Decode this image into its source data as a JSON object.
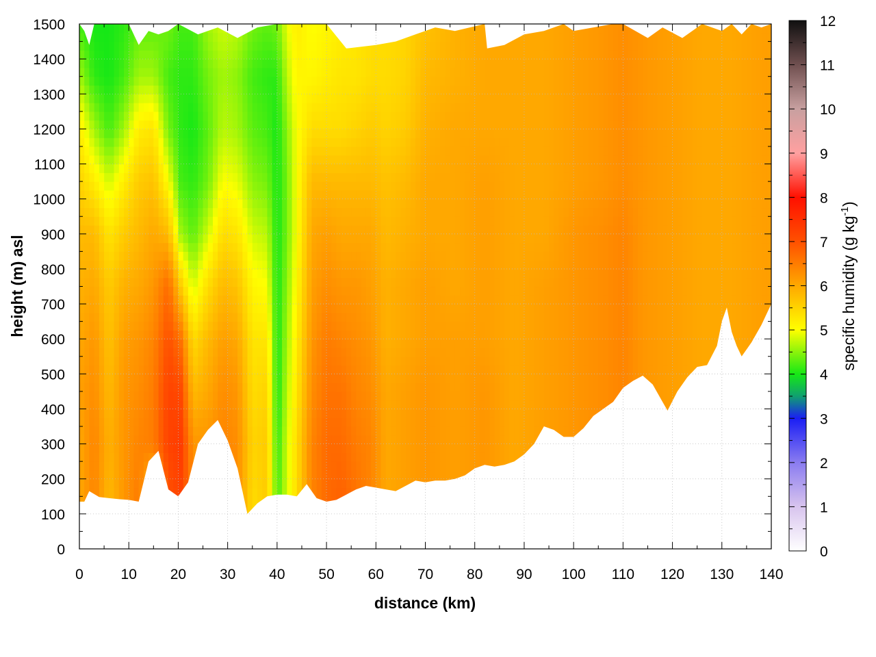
{
  "chart_data": {
    "type": "heatmap",
    "xlabel": "distance (km)",
    "ylabel": "height (m) asl",
    "colorbar_label": "specific humidity (g kg",
    "colorbar_label_sup": "-1",
    "colorbar_label_end": ")",
    "xlim": [
      0,
      140
    ],
    "ylim": [
      0,
      1500
    ],
    "clim": [
      0,
      12
    ],
    "x_ticks": [
      "0",
      "10",
      "20",
      "30",
      "40",
      "50",
      "60",
      "70",
      "80",
      "90",
      "100",
      "110",
      "120",
      "130",
      "140"
    ],
    "y_ticks": [
      "0",
      "100",
      "200",
      "300",
      "400",
      "500",
      "600",
      "700",
      "800",
      "900",
      "1000",
      "1100",
      "1200",
      "1300",
      "1400",
      "1500"
    ],
    "c_ticks": [
      "0",
      "1",
      "2",
      "3",
      "4",
      "5",
      "6",
      "7",
      "8",
      "9",
      "10",
      "11",
      "12"
    ],
    "grid": true,
    "colormap": [
      {
        "v": 0,
        "color": "#ffffff"
      },
      {
        "v": 1,
        "color": "#d8c4ee"
      },
      {
        "v": 2,
        "color": "#8a7cf0"
      },
      {
        "v": 3,
        "color": "#1a1ef4"
      },
      {
        "v": 3.5,
        "color": "#10a070"
      },
      {
        "v": 4,
        "color": "#16e816"
      },
      {
        "v": 5,
        "color": "#ffff00"
      },
      {
        "v": 6,
        "color": "#ffa800"
      },
      {
        "v": 7,
        "color": "#ff5000"
      },
      {
        "v": 8,
        "color": "#ff1000"
      },
      {
        "v": 9,
        "color": "#ffa0a0"
      },
      {
        "v": 10,
        "color": "#c8a0a0"
      },
      {
        "v": 11,
        "color": "#705050"
      },
      {
        "v": 12,
        "color": "#101010"
      }
    ],
    "terrain_bottom": [
      [
        0,
        135
      ],
      [
        1,
        135
      ],
      [
        2,
        165
      ],
      [
        4,
        148
      ],
      [
        6,
        145
      ],
      [
        8,
        142
      ],
      [
        10,
        140
      ],
      [
        12,
        135
      ],
      [
        14,
        250
      ],
      [
        16,
        280
      ],
      [
        18,
        170
      ],
      [
        20,
        150
      ],
      [
        22,
        190
      ],
      [
        24,
        300
      ],
      [
        26,
        340
      ],
      [
        28,
        368
      ],
      [
        30,
        310
      ],
      [
        32,
        230
      ],
      [
        34,
        100
      ],
      [
        36,
        130
      ],
      [
        38,
        150
      ],
      [
        40,
        155
      ],
      [
        42,
        155
      ],
      [
        44,
        150
      ],
      [
        46,
        185
      ],
      [
        48,
        145
      ],
      [
        50,
        135
      ],
      [
        52,
        140
      ],
      [
        54,
        155
      ],
      [
        56,
        170
      ],
      [
        58,
        180
      ],
      [
        60,
        175
      ],
      [
        62,
        170
      ],
      [
        64,
        165
      ],
      [
        66,
        180
      ],
      [
        68,
        195
      ],
      [
        70,
        190
      ],
      [
        72,
        195
      ],
      [
        74,
        195
      ],
      [
        76,
        200
      ],
      [
        78,
        210
      ],
      [
        80,
        230
      ],
      [
        82,
        240
      ],
      [
        84,
        235
      ],
      [
        86,
        240
      ],
      [
        88,
        250
      ],
      [
        90,
        270
      ],
      [
        92,
        300
      ],
      [
        94,
        350
      ],
      [
        96,
        340
      ],
      [
        98,
        320
      ],
      [
        100,
        320
      ],
      [
        102,
        345
      ],
      [
        104,
        380
      ],
      [
        106,
        400
      ],
      [
        108,
        420
      ],
      [
        110,
        460
      ],
      [
        112,
        480
      ],
      [
        114,
        495
      ],
      [
        116,
        470
      ],
      [
        118,
        420
      ],
      [
        119,
        395
      ],
      [
        121,
        450
      ],
      [
        123,
        490
      ],
      [
        125,
        520
      ],
      [
        127,
        525
      ],
      [
        129,
        580
      ],
      [
        130,
        650
      ],
      [
        131,
        690
      ],
      [
        132,
        620
      ],
      [
        133,
        580
      ],
      [
        134,
        550
      ],
      [
        136,
        590
      ],
      [
        138,
        640
      ],
      [
        140,
        700
      ]
    ],
    "top_boundary": [
      [
        0,
        1500
      ],
      [
        1,
        1480
      ],
      [
        2,
        1440
      ],
      [
        3,
        1500
      ],
      [
        10,
        1500
      ],
      [
        12,
        1440
      ],
      [
        14,
        1480
      ],
      [
        16,
        1470
      ],
      [
        18,
        1480
      ],
      [
        20,
        1500
      ],
      [
        24,
        1470
      ],
      [
        28,
        1490
      ],
      [
        32,
        1460
      ],
      [
        36,
        1490
      ],
      [
        40,
        1500
      ],
      [
        50,
        1500
      ],
      [
        54,
        1430
      ],
      [
        60,
        1440
      ],
      [
        64,
        1450
      ],
      [
        68,
        1470
      ],
      [
        72,
        1490
      ],
      [
        76,
        1480
      ],
      [
        82,
        1500
      ],
      [
        82.5,
        1430
      ],
      [
        86,
        1440
      ],
      [
        90,
        1470
      ],
      [
        94,
        1480
      ],
      [
        96,
        1490
      ],
      [
        98,
        1500
      ],
      [
        100,
        1480
      ],
      [
        104,
        1490
      ],
      [
        108,
        1500
      ],
      [
        110,
        1500
      ],
      [
        115,
        1460
      ],
      [
        118,
        1490
      ],
      [
        122,
        1460
      ],
      [
        126,
        1500
      ],
      [
        130,
        1480
      ],
      [
        132,
        1500
      ],
      [
        134,
        1470
      ],
      [
        136,
        1500
      ],
      [
        138,
        1490
      ],
      [
        140,
        1500
      ]
    ],
    "columns": [
      {
        "x": 0,
        "v": [
          6.0,
          6.0,
          6.1,
          6.0,
          5.9,
          5.8,
          5.5,
          5.2,
          4.6,
          4.2
        ]
      },
      {
        "x": 3,
        "v": [
          6.4,
          6.4,
          6.3,
          6.2,
          6.0,
          5.8,
          5.2,
          4.6,
          4.1,
          4.0
        ]
      },
      {
        "x": 6,
        "v": [
          5.8,
          5.9,
          5.8,
          5.7,
          5.6,
          5.3,
          4.8,
          4.2,
          4.0,
          4.0
        ]
      },
      {
        "x": 9,
        "v": [
          6.2,
          6.2,
          6.2,
          6.1,
          5.9,
          5.6,
          5.2,
          4.6,
          4.2,
          4.1
        ]
      },
      {
        "x": 12,
        "v": [
          6.5,
          6.4,
          6.3,
          6.2,
          6.0,
          5.8,
          5.6,
          5.2,
          4.6,
          4.3
        ]
      },
      {
        "x": 15,
        "v": [
          5.5,
          6.5,
          6.5,
          6.4,
          6.2,
          6.0,
          5.7,
          5.3,
          4.6,
          4.3
        ]
      },
      {
        "x": 18,
        "v": [
          7.0,
          7.2,
          7.2,
          7.0,
          6.7,
          5.8,
          5.0,
          4.4,
          4.2,
          4.4
        ]
      },
      {
        "x": 20.5,
        "v": [
          7.2,
          7.3,
          7.1,
          6.6,
          5.6,
          4.6,
          4.2,
          4.1,
          4.1,
          4.2
        ]
      },
      {
        "x": 23,
        "v": [
          6.4,
          6.2,
          5.8,
          5.4,
          4.8,
          4.3,
          4.1,
          4.0,
          4.1,
          4.2
        ]
      },
      {
        "x": 26,
        "v": [
          6.2,
          6.2,
          6.0,
          5.8,
          5.4,
          4.8,
          4.4,
          4.3,
          4.4,
          4.6
        ]
      },
      {
        "x": 29,
        "v": [
          6.4,
          6.4,
          6.3,
          6.1,
          5.8,
          5.4,
          5.0,
          4.7,
          4.6,
          4.8
        ]
      },
      {
        "x": 32,
        "v": [
          6.3,
          6.3,
          6.2,
          6.0,
          5.7,
          5.3,
          4.9,
          4.6,
          4.5,
          4.7
        ]
      },
      {
        "x": 35,
        "v": [
          5.4,
          5.5,
          5.4,
          5.3,
          5.1,
          4.8,
          4.5,
          4.3,
          4.2,
          4.4
        ]
      },
      {
        "x": 38,
        "v": [
          5.6,
          5.6,
          5.5,
          5.3,
          5.0,
          4.7,
          4.4,
          4.2,
          4.1,
          4.3
        ]
      },
      {
        "x": 40,
        "v": [
          4.2,
          4.1,
          4.0,
          4.0,
          4.0,
          4.0,
          4.0,
          4.0,
          4.1,
          4.4
        ]
      },
      {
        "x": 42,
        "v": [
          4.8,
          4.8,
          4.7,
          4.6,
          4.5,
          4.4,
          4.4,
          4.5,
          4.7,
          4.9
        ]
      },
      {
        "x": 44,
        "v": [
          5.4,
          5.4,
          5.3,
          5.2,
          5.1,
          5.0,
          5.0,
          5.0,
          5.1,
          5.2
        ]
      },
      {
        "x": 47,
        "v": [
          6.4,
          6.4,
          6.3,
          6.2,
          6.1,
          6.0,
          5.8,
          5.4,
          5.1,
          5.0
        ]
      },
      {
        "x": 50,
        "v": [
          6.7,
          6.7,
          6.6,
          6.5,
          6.3,
          6.1,
          5.8,
          5.4,
          5.2,
          5.1
        ]
      },
      {
        "x": 53,
        "v": [
          6.8,
          6.7,
          6.6,
          6.4,
          6.2,
          6.0,
          5.8,
          5.4,
          5.3,
          5.2
        ]
      },
      {
        "x": 56,
        "v": [
          6.6,
          6.5,
          6.4,
          6.3,
          6.2,
          6.0,
          5.8,
          5.5,
          5.3,
          5.3
        ]
      },
      {
        "x": 59,
        "v": [
          6.4,
          6.4,
          6.3,
          6.2,
          6.1,
          6.0,
          5.8,
          5.6,
          5.4,
          5.4
        ]
      },
      {
        "x": 62,
        "v": [
          6.0,
          6.0,
          6.0,
          5.9,
          5.9,
          5.8,
          5.7,
          5.5,
          5.4,
          5.4
        ]
      },
      {
        "x": 66,
        "v": [
          6.1,
          6.1,
          6.1,
          6.0,
          6.0,
          5.9,
          5.8,
          5.6,
          5.5,
          5.5
        ]
      },
      {
        "x": 70,
        "v": [
          6.2,
          6.2,
          6.2,
          6.1,
          6.1,
          6.0,
          6.0,
          5.9,
          5.8,
          5.7
        ]
      },
      {
        "x": 76,
        "v": [
          6.1,
          6.1,
          6.1,
          6.1,
          6.0,
          6.0,
          6.0,
          6.0,
          5.9,
          5.9
        ]
      },
      {
        "x": 82,
        "v": [
          6.2,
          6.2,
          6.2,
          6.1,
          6.1,
          6.1,
          6.1,
          6.0,
          6.0,
          6.0
        ]
      },
      {
        "x": 88,
        "v": [
          6.0,
          6.0,
          6.0,
          6.0,
          6.0,
          6.0,
          6.0,
          6.0,
          6.0,
          6.0
        ]
      },
      {
        "x": 94,
        "v": [
          6.1,
          6.1,
          6.1,
          6.1,
          6.1,
          6.0,
          6.0,
          6.0,
          6.0,
          6.0
        ]
      },
      {
        "x": 100,
        "v": [
          6.2,
          6.2,
          6.2,
          6.2,
          6.2,
          6.2,
          6.1,
          6.1,
          6.1,
          6.1
        ]
      },
      {
        "x": 106,
        "v": [
          6.3,
          6.3,
          6.3,
          6.3,
          6.3,
          6.3,
          6.2,
          6.2,
          6.2,
          6.2
        ]
      },
      {
        "x": 110,
        "v": [
          6.4,
          6.4,
          6.4,
          6.4,
          6.4,
          6.4,
          6.3,
          6.3,
          6.3,
          6.3
        ]
      },
      {
        "x": 114,
        "v": [
          6.2,
          6.2,
          6.2,
          6.2,
          6.2,
          6.2,
          6.2,
          6.2,
          6.2,
          6.2
        ]
      },
      {
        "x": 120,
        "v": [
          6.1,
          6.1,
          6.1,
          6.1,
          6.1,
          6.1,
          6.1,
          6.1,
          6.1,
          6.1
        ]
      },
      {
        "x": 126,
        "v": [
          6.0,
          6.0,
          6.0,
          6.0,
          6.0,
          6.0,
          6.0,
          6.0,
          6.0,
          6.0
        ]
      },
      {
        "x": 132,
        "v": [
          6.0,
          6.0,
          6.0,
          6.0,
          6.0,
          6.0,
          6.0,
          6.0,
          6.0,
          6.0
        ]
      },
      {
        "x": 138,
        "v": [
          6.1,
          6.1,
          6.1,
          6.1,
          6.1,
          6.1,
          6.1,
          6.1,
          6.1,
          6.1
        ]
      },
      {
        "x": 140,
        "v": [
          6.1,
          6.1,
          6.1,
          6.1,
          6.1,
          6.1,
          6.1,
          6.1,
          6.1,
          6.1
        ]
      }
    ],
    "column_levels": [
      150,
      300,
      450,
      600,
      750,
      900,
      1050,
      1200,
      1350,
      1500
    ]
  }
}
